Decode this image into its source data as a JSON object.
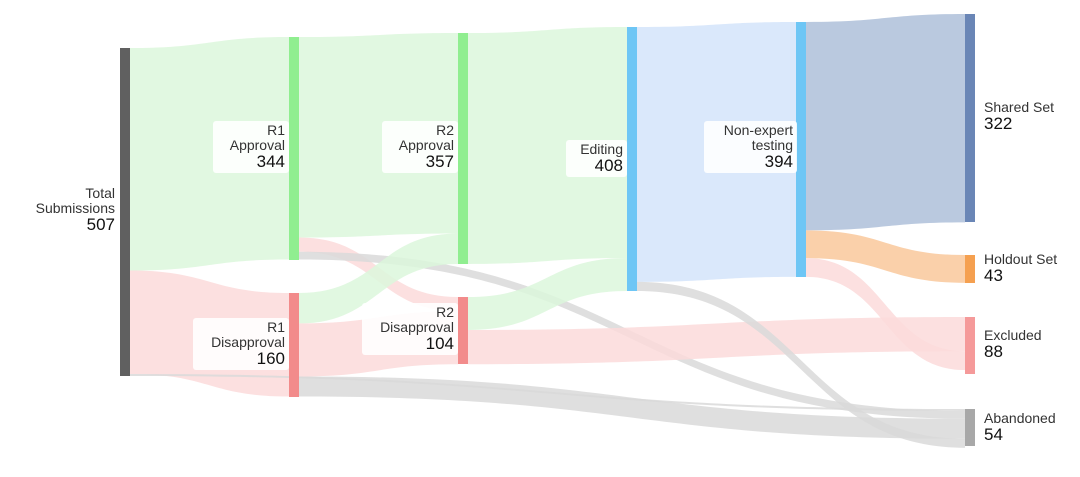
{
  "nodes": {
    "total": {
      "label_lines": [
        "Total",
        "Submissions"
      ],
      "value": "507",
      "color": "#606060"
    },
    "r1_approval": {
      "label_lines": [
        "R1",
        "Approval"
      ],
      "value": "344",
      "color": "#90ee90"
    },
    "r1_disapproval": {
      "label_lines": [
        "R1",
        "Disapproval"
      ],
      "value": "160",
      "color": "#f28b8b"
    },
    "r2_approval": {
      "label_lines": [
        "R2",
        "Approval"
      ],
      "value": "357",
      "color": "#90ee90"
    },
    "r2_disapproval": {
      "label_lines": [
        "R2",
        "Disapproval"
      ],
      "value": "104",
      "color": "#f28b8b"
    },
    "editing": {
      "label_lines": [
        "Editing"
      ],
      "value": "408",
      "color": "#6ec6f5"
    },
    "nonexpert": {
      "label_lines": [
        "Non-expert",
        "testing"
      ],
      "value": "394",
      "color": "#6ec6f5"
    },
    "shared": {
      "label_lines": [
        "Shared Set"
      ],
      "value": "322",
      "color": "#6a86b6"
    },
    "holdout": {
      "label_lines": [
        "Holdout Set"
      ],
      "value": "43",
      "color": "#f5a050"
    },
    "excluded": {
      "label_lines": [
        "Excluded"
      ],
      "value": "88",
      "color": "#f59a9a"
    },
    "abandoned": {
      "label_lines": [
        "Abandoned"
      ],
      "value": "54",
      "color": "#a8a8a8"
    }
  },
  "colors": {
    "approve_flow": "#dcf7dc",
    "disapprove_flow": "#fbdada",
    "abandon_flow": "#d9d9d9",
    "nonexpert_flow": "#d3e4fa",
    "shared_flow": "#aebfd9",
    "holdout_flow": "#f9c89b"
  }
}
